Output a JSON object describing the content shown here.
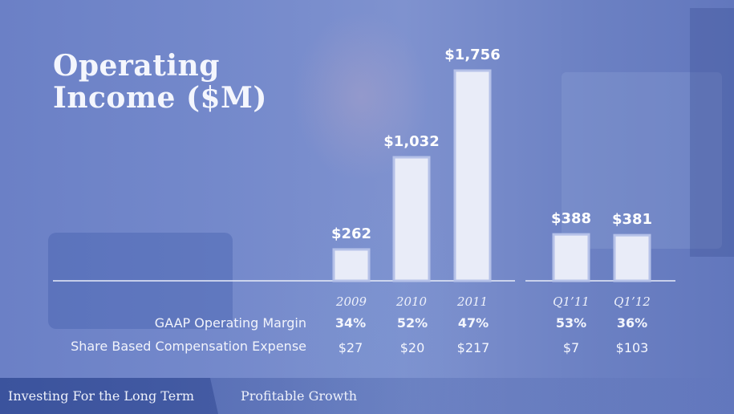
{
  "title_lines": [
    "Operating",
    "Income ($M)"
  ],
  "chart_data": {
    "type": "bar",
    "groups": [
      {
        "categories": [
          "2009",
          "2010",
          "2011"
        ],
        "values": [
          262,
          1032,
          1756
        ],
        "value_labels": [
          "$262",
          "$1,032",
          "$1,756"
        ]
      },
      {
        "categories": [
          "Q1’11",
          "Q1’12"
        ],
        "values": [
          388,
          381
        ],
        "value_labels": [
          "$388",
          "$381"
        ]
      }
    ],
    "colors": {
      "bar_fill": "#e9ecf8",
      "bar_stroke": "#b5c1e8",
      "baseline": "#e8ecf8"
    }
  },
  "rows": [
    {
      "label": "GAAP Operating Margin",
      "values": [
        "34%",
        "52%",
        "47%",
        "53%",
        "36%"
      ],
      "bold": true
    },
    {
      "label": "Share Based Compensation Expense",
      "values": [
        "$27",
        "$20",
        "$217",
        "$7",
        "$103"
      ],
      "bold": false
    }
  ],
  "footer": {
    "items": [
      "Investing For the Long Term",
      "Profitable Growth"
    ]
  }
}
